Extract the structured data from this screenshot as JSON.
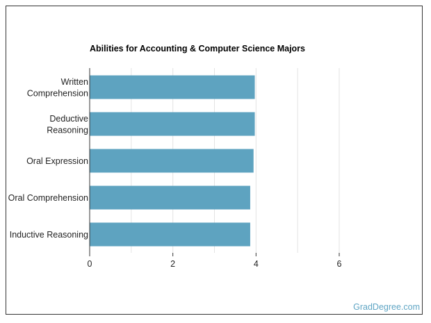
{
  "chart_data": {
    "type": "bar",
    "orientation": "horizontal",
    "title": "Abilities for Accounting & Computer Science Majors",
    "categories": [
      [
        "Written",
        "Comprehension"
      ],
      [
        "Deductive",
        "Reasoning"
      ],
      [
        "Oral Expression"
      ],
      [
        "Oral Comprehension"
      ],
      [
        "Inductive Reasoning"
      ]
    ],
    "values": [
      3.97,
      3.97,
      3.94,
      3.86,
      3.86
    ],
    "xlim": [
      0,
      6
    ],
    "x_ticks": [
      0,
      2,
      4,
      6
    ],
    "grid": "vertical",
    "bar_color": "#5ea3c0"
  },
  "credit": "GradDegree.com"
}
